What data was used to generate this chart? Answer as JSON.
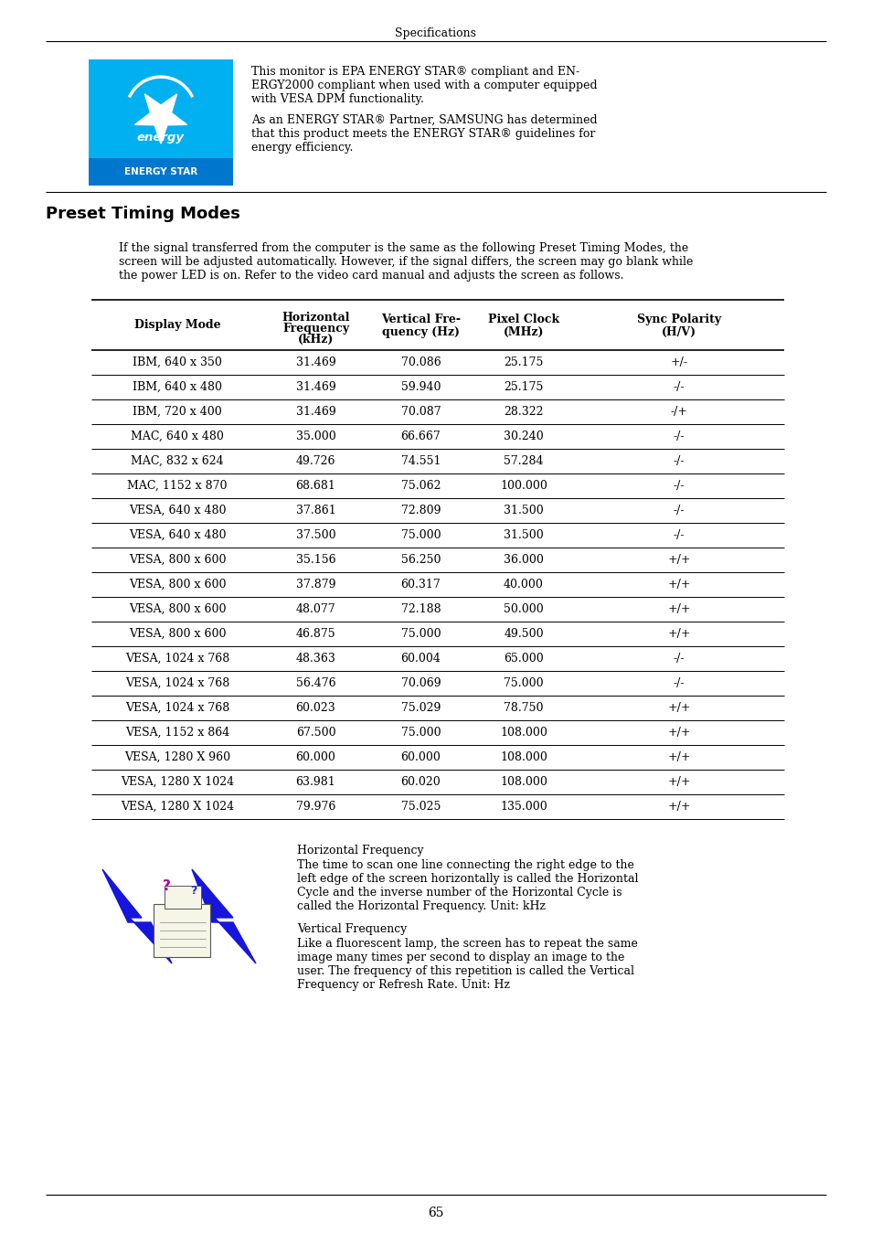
{
  "page_title": "Specifications",
  "section_title": "Preset Timing Modes",
  "energy_star_text1a": "This monitor is EPA ENERGY STAR",
  "energy_star_text1b": " compliant and EN-",
  "energy_star_text1c": "ERGY2000 compliant when used with a computer equipped",
  "energy_star_text1d": "with VESA DPM functionality.",
  "energy_star_text2a": "As an ENERGY STAR",
  "energy_star_text2b": " Partner, SAMSUNG has determined",
  "energy_star_text2c": "that this product meets the ENERGY STAR",
  "energy_star_text2d": " guidelines for",
  "energy_star_text2e": "energy efficiency.",
  "intro_text_line1": "If the signal transferred from the computer is the same as the following Preset Timing Modes, the",
  "intro_text_line2": "screen will be adjusted automatically. However, if the signal differs, the screen may go blank while",
  "intro_text_line3": "the power LED is on. Refer to the video card manual and adjusts the screen as follows.",
  "table_data": [
    [
      "IBM, 640 x 350",
      "31.469",
      "70.086",
      "25.175",
      "+/-"
    ],
    [
      "IBM, 640 x 480",
      "31.469",
      "59.940",
      "25.175",
      "-/-"
    ],
    [
      "IBM, 720 x 400",
      "31.469",
      "70.087",
      "28.322",
      "-/+"
    ],
    [
      "MAC, 640 x 480",
      "35.000",
      "66.667",
      "30.240",
      "-/-"
    ],
    [
      "MAC, 832 x 624",
      "49.726",
      "74.551",
      "57.284",
      "-/-"
    ],
    [
      "MAC, 1152 x 870",
      "68.681",
      "75.062",
      "100.000",
      "-/-"
    ],
    [
      "VESA, 640 x 480",
      "37.861",
      "72.809",
      "31.500",
      "-/-"
    ],
    [
      "VESA, 640 x 480",
      "37.500",
      "75.000",
      "31.500",
      "-/-"
    ],
    [
      "VESA, 800 x 600",
      "35.156",
      "56.250",
      "36.000",
      "+/+"
    ],
    [
      "VESA, 800 x 600",
      "37.879",
      "60.317",
      "40.000",
      "+/+"
    ],
    [
      "VESA, 800 x 600",
      "48.077",
      "72.188",
      "50.000",
      "+/+"
    ],
    [
      "VESA, 800 x 600",
      "46.875",
      "75.000",
      "49.500",
      "+/+"
    ],
    [
      "VESA, 1024 x 768",
      "48.363",
      "60.004",
      "65.000",
      "-/-"
    ],
    [
      "VESA, 1024 x 768",
      "56.476",
      "70.069",
      "75.000",
      "-/-"
    ],
    [
      "VESA, 1024 x 768",
      "60.023",
      "75.029",
      "78.750",
      "+/+"
    ],
    [
      "VESA, 1152 x 864",
      "67.500",
      "75.000",
      "108.000",
      "+/+"
    ],
    [
      "VESA, 1280 X 960",
      "60.000",
      "60.000",
      "108.000",
      "+/+"
    ],
    [
      "VESA, 1280 X 1024",
      "63.981",
      "60.020",
      "108.000",
      "+/+"
    ],
    [
      "VESA, 1280 X 1024",
      "79.976",
      "75.025",
      "135.000",
      "+/+"
    ]
  ],
  "horiz_freq_title": "Horizontal Frequency",
  "horiz_freq_text_lines": [
    "The time to scan one line connecting the right edge to the",
    "left edge of the screen horizontally is called the Horizontal",
    "Cycle and the inverse number of the Horizontal Cycle is",
    "called the Horizontal Frequency. Unit: kHz"
  ],
  "vert_freq_title": "Vertical Frequency",
  "vert_freq_text_lines": [
    "Like a fluorescent lamp, the screen has to repeat the same",
    "image many times per second to display an image to the",
    "user. The frequency of this repetition is called the Vertical",
    "Frequency or Refresh Rate. Unit: Hz"
  ],
  "page_number": "65",
  "bg_color": "#ffffff",
  "energy_star_bg": "#00b0f0",
  "line_color": "#000000"
}
